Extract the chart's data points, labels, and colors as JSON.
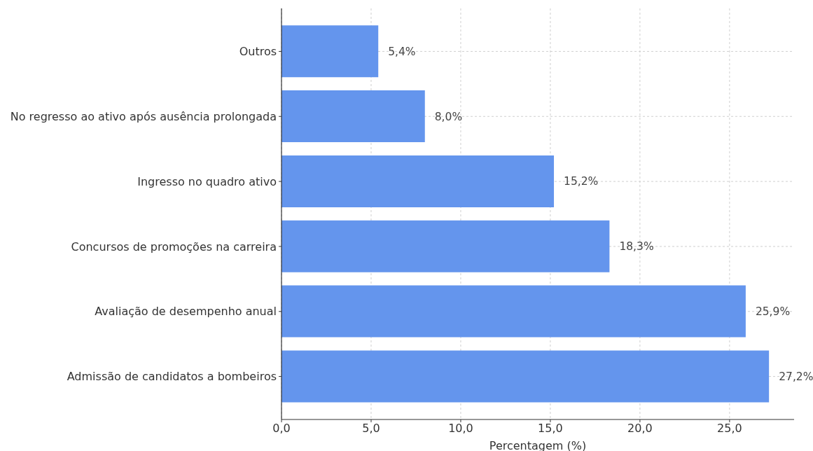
{
  "chart_data": {
    "type": "bar",
    "orientation": "horizontal",
    "categories": [
      "Outros",
      "No regresso ao ativo após ausência prolongada",
      "Ingresso no quadro ativo",
      "Concursos de promoções na carreira",
      "Avaliação de desempenho anual",
      "Admissão de candidatos a bombeiros"
    ],
    "values": [
      5.4,
      8.0,
      15.2,
      18.3,
      25.9,
      27.2
    ],
    "color": "#6495ed",
    "value_labels": [
      "5,4%",
      "8,0%",
      "15,2%",
      "18,3%",
      "25,9%",
      "27,2%"
    ],
    "xlabel": "Percentagem (%)",
    "xlim": [
      0,
      28.6
    ],
    "xticks": [
      {
        "value": 0,
        "label": "0,0"
      },
      {
        "value": 5,
        "label": "5,0"
      },
      {
        "value": 10,
        "label": "10,0"
      },
      {
        "value": 15,
        "label": "15,0"
      },
      {
        "value": 20,
        "label": "20,0"
      },
      {
        "value": 25,
        "label": "25,0"
      }
    ],
    "grid": true
  }
}
